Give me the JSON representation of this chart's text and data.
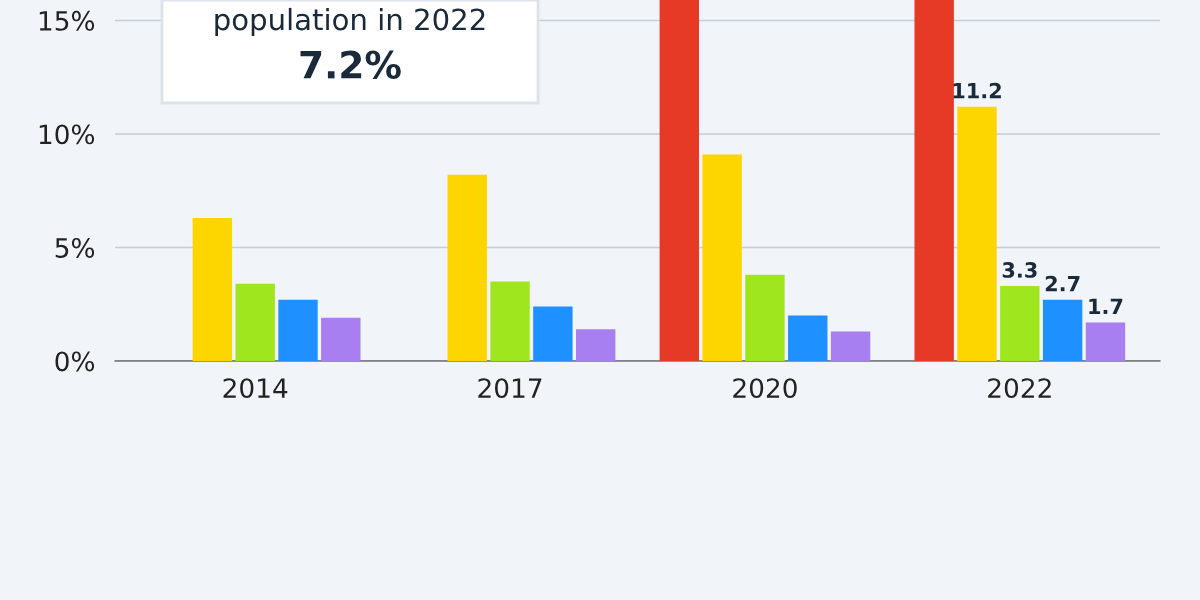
{
  "chart_data": {
    "type": "bar",
    "categories": [
      "2014",
      "2017",
      "2020",
      "2022"
    ],
    "series": [
      {
        "color": "#e63a26",
        "values": [
          null,
          null,
          15.9,
          15.9
        ]
      },
      {
        "color": "#fdd600",
        "values": [
          6.3,
          8.2,
          9.1,
          11.2
        ],
        "value_labels": [
          null,
          null,
          null,
          "11.2"
        ]
      },
      {
        "color": "#9fe61e",
        "values": [
          3.4,
          3.5,
          3.8,
          3.3
        ],
        "value_labels": [
          null,
          null,
          null,
          "3.3"
        ]
      },
      {
        "color": "#1e90ff",
        "values": [
          2.7,
          2.4,
          2.0,
          2.7
        ],
        "value_labels": [
          null,
          null,
          null,
          "2.7"
        ]
      },
      {
        "color": "#a87ff0",
        "values": [
          1.9,
          1.4,
          1.3,
          1.7
        ],
        "value_labels": [
          null,
          null,
          null,
          "1.7"
        ]
      }
    ],
    "ylim": [
      0,
      15.9
    ],
    "yticks": [
      {
        "value": 0,
        "label": "0%"
      },
      {
        "value": 5,
        "label": "5%"
      },
      {
        "value": 10,
        "label": "10%"
      },
      {
        "value": 15,
        "label": "15%"
      }
    ],
    "grid": "y",
    "annotations": [
      "population in 2022",
      "7.2%"
    ]
  }
}
